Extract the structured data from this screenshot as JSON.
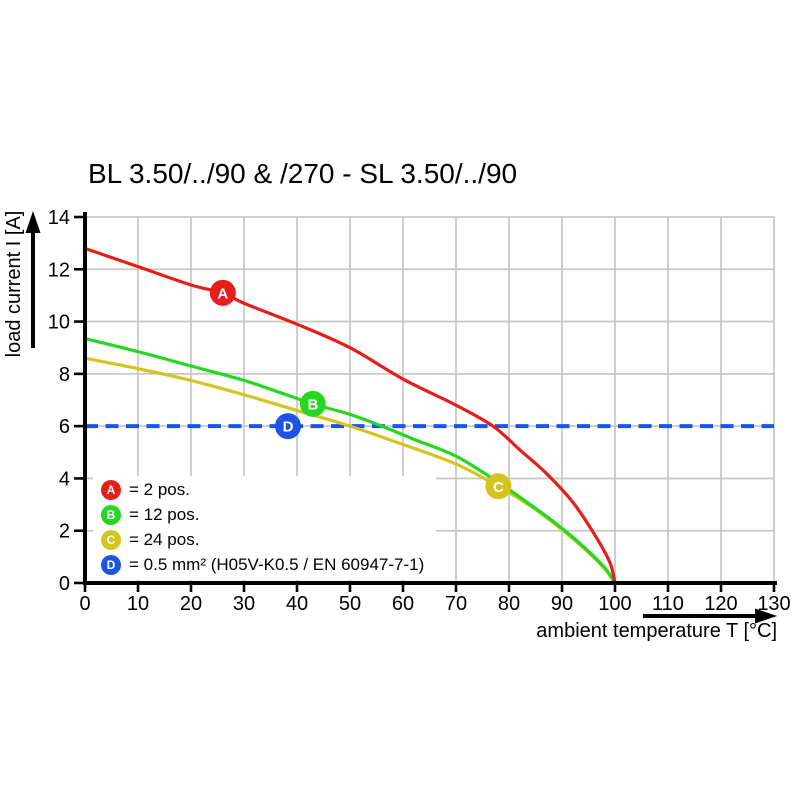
{
  "title": "BL 3.50/../90 & /270 - SL 3.50/../90",
  "axes": {
    "x_label": "ambient temperature T [°C]",
    "y_label": "load current I [A]"
  },
  "legend": {
    "items": [
      {
        "letter": "A",
        "color": "#e61e19",
        "text": "= 2 pos."
      },
      {
        "letter": "B",
        "color": "#23d723",
        "text": "= 12 pos."
      },
      {
        "letter": "C",
        "color": "#d4c41e",
        "text": "= 24 pos."
      },
      {
        "letter": "D",
        "color": "#1a55e6",
        "text": "= 0.5 mm² (H05V-K0.5 / EN 60947-7-1)"
      }
    ]
  },
  "chart_data": {
    "type": "line",
    "title": "BL 3.50/../90 & /270 - SL 3.50/../90",
    "xlabel": "ambient temperature T [°C]",
    "ylabel": "load current I [A]",
    "xlim": [
      0,
      130
    ],
    "ylim": [
      0,
      14
    ],
    "x_ticks": [
      0,
      10,
      20,
      30,
      40,
      50,
      60,
      70,
      80,
      90,
      100,
      110,
      120,
      130
    ],
    "y_ticks": [
      0,
      2,
      4,
      6,
      8,
      10,
      12,
      14
    ],
    "grid": true,
    "grid_color": "#c9c9c9",
    "axis_color": "#000000",
    "legend_position": "inside-bottom-left",
    "series": [
      {
        "id": "A",
        "name": "2 pos.",
        "color": "#e61e19",
        "dashed": false,
        "points": [
          [
            0,
            12.8
          ],
          [
            10,
            12.1
          ],
          [
            20,
            11.4
          ],
          [
            26,
            11.1
          ],
          [
            30,
            10.7
          ],
          [
            40,
            9.9
          ],
          [
            50,
            9.0
          ],
          [
            60,
            7.8
          ],
          [
            70,
            6.8
          ],
          [
            77,
            6.0
          ],
          [
            82,
            5.1
          ],
          [
            87,
            4.2
          ],
          [
            92,
            3.1
          ],
          [
            96,
            1.9
          ],
          [
            99,
            0.8
          ],
          [
            100,
            0
          ]
        ],
        "marker": {
          "x": 26,
          "y": 11.1
        }
      },
      {
        "id": "B",
        "name": "12 pos.",
        "color": "#23d723",
        "dashed": false,
        "points": [
          [
            0,
            9.35
          ],
          [
            10,
            8.85
          ],
          [
            20,
            8.3
          ],
          [
            30,
            7.75
          ],
          [
            38,
            7.2
          ],
          [
            43,
            6.85
          ],
          [
            50,
            6.45
          ],
          [
            56,
            6.0
          ],
          [
            62,
            5.5
          ],
          [
            70,
            4.85
          ],
          [
            78,
            3.85
          ],
          [
            84,
            3.0
          ],
          [
            89,
            2.25
          ],
          [
            94,
            1.4
          ],
          [
            98,
            0.6
          ],
          [
            100,
            0
          ]
        ],
        "marker": {
          "x": 43,
          "y": 6.85
        }
      },
      {
        "id": "C",
        "name": "24 pos.",
        "color": "#d4c41e",
        "dashed": false,
        "points": [
          [
            0,
            8.6
          ],
          [
            10,
            8.2
          ],
          [
            20,
            7.75
          ],
          [
            30,
            7.2
          ],
          [
            40,
            6.6
          ],
          [
            50,
            6.0
          ],
          [
            60,
            5.3
          ],
          [
            70,
            4.55
          ],
          [
            78,
            3.7
          ],
          [
            84,
            2.95
          ],
          [
            89,
            2.2
          ],
          [
            94,
            1.35
          ],
          [
            98,
            0.55
          ],
          [
            100,
            0
          ]
        ],
        "marker": {
          "x": 78,
          "y": 3.7
        }
      },
      {
        "id": "D",
        "name": "0.5 mm² (H05V-K0.5 / EN 60947-7-1)",
        "color": "#1a55e6",
        "dashed": true,
        "points": [
          [
            0,
            6
          ],
          [
            130,
            6
          ]
        ],
        "marker": {
          "x": 38.3,
          "y": 6
        }
      }
    ]
  }
}
